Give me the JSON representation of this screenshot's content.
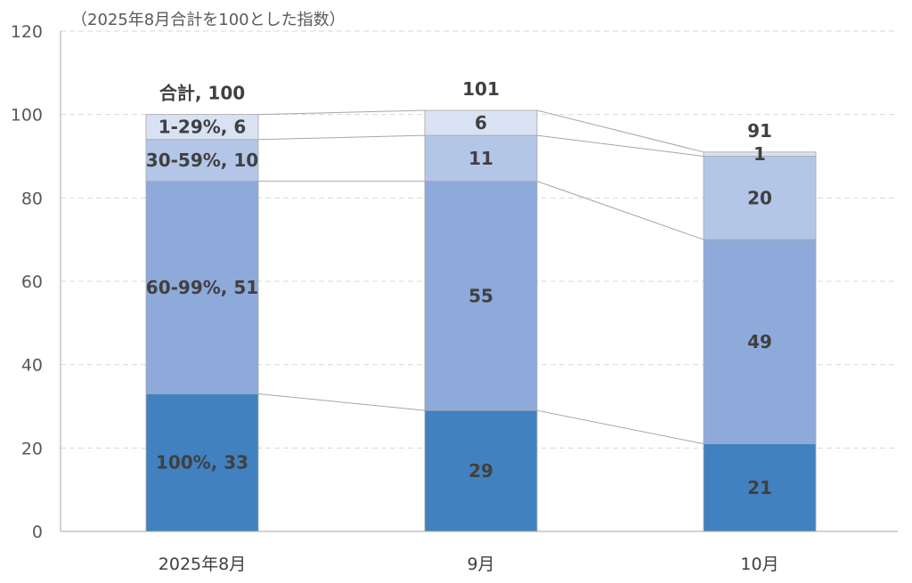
{
  "chart_data": {
    "type": "bar",
    "stacked": true,
    "subtitle": "（2025年8月合計を100とした指数）",
    "categories": [
      "2025年8月",
      "9月",
      "10月"
    ],
    "ylim": [
      0,
      120
    ],
    "yticks": [
      0,
      20,
      40,
      60,
      80,
      100,
      120
    ],
    "grid": true,
    "series": [
      {
        "name": "100%",
        "color": "#4281BF",
        "values": [
          33,
          29,
          21
        ],
        "labels": [
          "100%, 33",
          "29",
          "21"
        ]
      },
      {
        "name": "60-99%",
        "color": "#8EAADB",
        "values": [
          51,
          55,
          49
        ],
        "labels": [
          "60-99%, 51",
          "55",
          "49"
        ]
      },
      {
        "name": "30-59%",
        "color": "#B4C6E7",
        "values": [
          10,
          11,
          20
        ],
        "labels": [
          "30-59%, 10",
          "11",
          "20"
        ]
      },
      {
        "name": "1-29%",
        "color": "#D9E2F3",
        "values": [
          6,
          6,
          1
        ],
        "labels": [
          "1-29%, 6",
          "6",
          "1"
        ]
      }
    ],
    "totals": [
      100,
      101,
      91
    ],
    "total_labels": [
      "合計, 100",
      "101",
      "91"
    ]
  }
}
